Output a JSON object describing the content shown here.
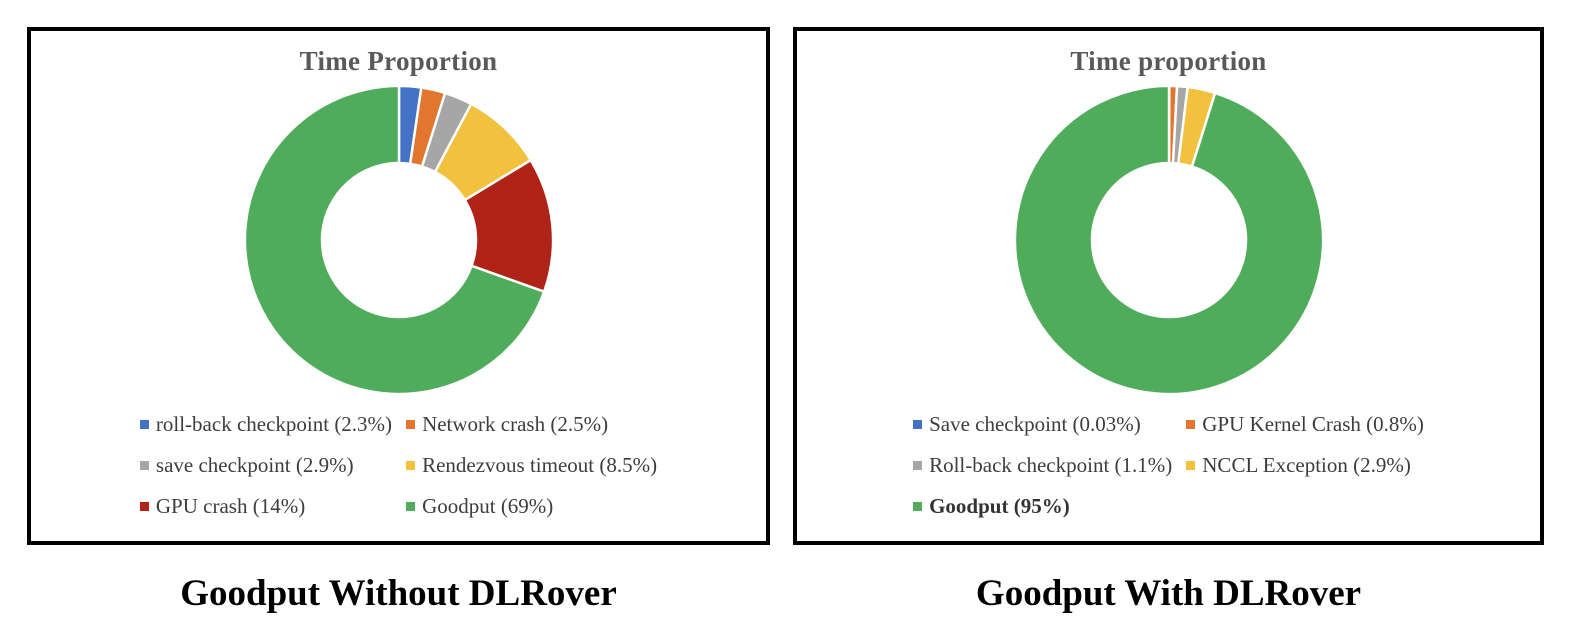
{
  "chart_data": [
    {
      "type": "pie",
      "subtype": "donut",
      "title": "Time Proportion",
      "caption": "Goodput Without DLRover",
      "legend_position": "bottom",
      "donut_hole_ratio": 0.5,
      "start_angle": "12-oclock",
      "direction": "clockwise",
      "slices": [
        {
          "label": "roll-back checkpoint",
          "value_pct": 2.3,
          "legend_label": "roll-back checkpoint (2.3%)",
          "color": "#4472C4",
          "bold": false
        },
        {
          "label": "Network crash",
          "value_pct": 2.5,
          "legend_label": "Network crash (2.5%)",
          "color": "#E2762F",
          "bold": false
        },
        {
          "label": "save checkpoint",
          "value_pct": 2.9,
          "legend_label": "save checkpoint (2.9%)",
          "color": "#A6A6A6",
          "bold": false
        },
        {
          "label": "Rendezvous timeout",
          "value_pct": 8.5,
          "legend_label": "Rendezvous timeout (8.5%)",
          "color": "#F2C13D",
          "bold": false
        },
        {
          "label": "GPU crash",
          "value_pct": 14,
          "legend_label": "GPU crash (14%)",
          "color": "#B02318",
          "bold": false
        },
        {
          "label": "Goodput",
          "value_pct": 69,
          "legend_label": "Goodput (69%)",
          "color": "#4FAC5B",
          "bold": false
        }
      ]
    },
    {
      "type": "pie",
      "subtype": "donut",
      "title": "Time proportion",
      "caption": "Goodput With DLRover",
      "legend_position": "bottom",
      "donut_hole_ratio": 0.5,
      "start_angle": "12-oclock",
      "direction": "clockwise",
      "slices": [
        {
          "label": "Save checkpoint",
          "value_pct": 0.03,
          "legend_label": "Save checkpoint (0.03%)",
          "color": "#4472C4",
          "bold": false
        },
        {
          "label": "GPU Kernel Crash",
          "value_pct": 0.8,
          "legend_label": "GPU Kernel Crash (0.8%)",
          "color": "#E2762F",
          "bold": false
        },
        {
          "label": "Roll-back checkpoint",
          "value_pct": 1.1,
          "legend_label": "Roll-back checkpoint (1.1%)",
          "color": "#A6A6A6",
          "bold": false
        },
        {
          "label": "NCCL Exception",
          "value_pct": 2.9,
          "legend_label": "NCCL Exception (2.9%)",
          "color": "#F2C13D",
          "bold": false
        },
        {
          "label": "Goodput",
          "value_pct": 95,
          "legend_label": "Goodput (95%)",
          "color": "#4FAC5B",
          "bold": true
        }
      ]
    }
  ],
  "colors": {
    "panel_border": "#000000",
    "title_text": "#595959",
    "legend_text": "#3d3d3d",
    "caption_text": "#000000",
    "slice_gap": "#ffffff"
  }
}
